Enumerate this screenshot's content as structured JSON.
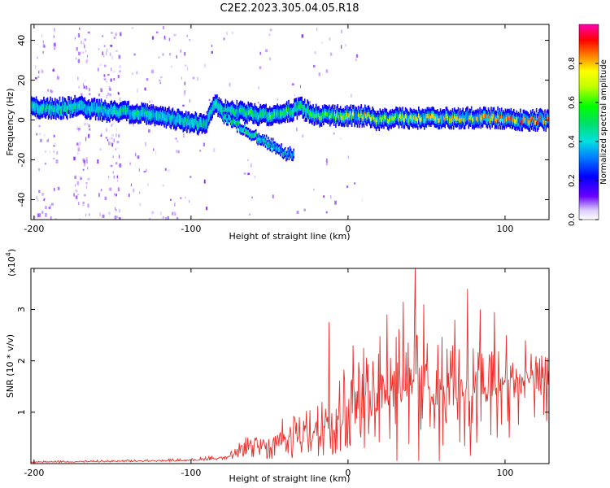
{
  "title": "C2E2.2023.305.04.05.R18",
  "colors": {
    "snr_line": "#e8312a",
    "axis": "#000000"
  },
  "chart_data": [
    {
      "type": "heatmap",
      "title": "C2E2.2023.305.04.05.R18",
      "xlabel": "Height of straight line (km)",
      "ylabel": "Frequency (Hz)",
      "xlim": [
        -202,
        128
      ],
      "ylim": [
        -50,
        48
      ],
      "xticks": [
        -200,
        -100,
        0,
        100
      ],
      "xtick_labels": [
        "-200",
        "-100",
        "0",
        "100"
      ],
      "yticks": [
        -40,
        -20,
        0,
        20,
        40
      ],
      "ytick_labels": [
        "-40",
        "-20",
        "0",
        "20",
        "40"
      ],
      "colorbar": {
        "label": "Normalized spectral amplitude",
        "range": [
          0,
          1
        ],
        "ticks": [
          0.0,
          0.2,
          0.4,
          0.6,
          0.8
        ],
        "tick_labels": [
          "0.0",
          "0.2",
          "0.4",
          "0.6",
          "0.8"
        ]
      },
      "ridge": [
        {
          "x": -200,
          "y": 6,
          "amp": 0.45
        },
        {
          "x": -190,
          "y": 6,
          "amp": 0.45
        },
        {
          "x": -180,
          "y": 6,
          "amp": 0.45
        },
        {
          "x": -170,
          "y": 7,
          "amp": 0.4
        },
        {
          "x": -160,
          "y": 5,
          "amp": 0.4
        },
        {
          "x": -150,
          "y": 4,
          "amp": 0.45
        },
        {
          "x": -140,
          "y": 4,
          "amp": 0.45
        },
        {
          "x": -130,
          "y": 3,
          "amp": 0.45
        },
        {
          "x": -120,
          "y": 2,
          "amp": 0.45
        },
        {
          "x": -110,
          "y": 0,
          "amp": 0.4
        },
        {
          "x": -100,
          "y": -1,
          "amp": 0.45
        },
        {
          "x": -92,
          "y": -3,
          "amp": 0.4
        },
        {
          "x": -85,
          "y": 8,
          "amp": 0.5
        },
        {
          "x": -80,
          "y": 5,
          "amp": 0.55
        },
        {
          "x": -70,
          "y": 4,
          "amp": 0.5
        },
        {
          "x": -60,
          "y": 3,
          "amp": 0.55
        },
        {
          "x": -50,
          "y": 2,
          "amp": 0.55
        },
        {
          "x": -40,
          "y": 4,
          "amp": 0.55
        },
        {
          "x": -30,
          "y": 6,
          "amp": 0.5
        },
        {
          "x": -20,
          "y": 2,
          "amp": 0.6
        },
        {
          "x": -10,
          "y": 2,
          "amp": 0.65
        },
        {
          "x": 0,
          "y": 2,
          "amp": 0.7
        },
        {
          "x": 10,
          "y": 2,
          "amp": 0.75
        },
        {
          "x": 20,
          "y": 0,
          "amp": 0.6
        },
        {
          "x": 30,
          "y": 1,
          "amp": 0.65
        },
        {
          "x": 40,
          "y": 1,
          "amp": 0.7
        },
        {
          "x": 50,
          "y": 1,
          "amp": 0.75
        },
        {
          "x": 60,
          "y": 1,
          "amp": 0.75
        },
        {
          "x": 70,
          "y": 1,
          "amp": 0.75
        },
        {
          "x": 80,
          "y": 1,
          "amp": 0.75
        },
        {
          "x": 90,
          "y": 1,
          "amp": 0.8
        },
        {
          "x": 100,
          "y": 1,
          "amp": 0.8
        },
        {
          "x": 110,
          "y": 0,
          "amp": 0.85
        },
        {
          "x": 120,
          "y": 0,
          "amp": 0.85
        },
        {
          "x": 128,
          "y": 0,
          "amp": 0.85
        }
      ],
      "branch": [
        {
          "x": -80,
          "y": 2,
          "amp": 0.5
        },
        {
          "x": -70,
          "y": -3,
          "amp": 0.45
        },
        {
          "x": -60,
          "y": -8,
          "amp": 0.45
        },
        {
          "x": -50,
          "y": -12,
          "amp": 0.4
        },
        {
          "x": -40,
          "y": -17,
          "amp": 0.35
        }
      ]
    },
    {
      "type": "line",
      "xlabel": "Height of straight line (km)",
      "ylabel": "SNR (10 * v/v)",
      "y_scale_label": "(x10",
      "y_scale_exp": "4",
      "y_scale_close": ")",
      "xlim": [
        -202,
        128
      ],
      "ylim": [
        0,
        3.8
      ],
      "xticks": [
        -200,
        -100,
        0,
        100
      ],
      "xtick_labels": [
        "-200",
        "-100",
        "0",
        "100"
      ],
      "yticks": [
        1,
        2,
        3
      ],
      "ytick_labels": [
        "1",
        "2",
        "3"
      ],
      "envelope": [
        {
          "x": -202,
          "base": 0.02,
          "peak": 0.05
        },
        {
          "x": -150,
          "base": 0.03,
          "peak": 0.07
        },
        {
          "x": -100,
          "base": 0.05,
          "peak": 0.1
        },
        {
          "x": -75,
          "base": 0.08,
          "peak": 0.22
        },
        {
          "x": -60,
          "base": 0.2,
          "peak": 0.7
        },
        {
          "x": -40,
          "base": 0.3,
          "peak": 0.9
        },
        {
          "x": -20,
          "base": 0.4,
          "peak": 1.1
        },
        {
          "x": -10,
          "base": 0.5,
          "peak": 1.6
        },
        {
          "x": 0,
          "base": 0.7,
          "peak": 2.0
        },
        {
          "x": 20,
          "base": 1.0,
          "peak": 2.6
        },
        {
          "x": 40,
          "base": 1.2,
          "peak": 3.0
        },
        {
          "x": 60,
          "base": 1.1,
          "peak": 2.6
        },
        {
          "x": 80,
          "base": 1.1,
          "peak": 2.3
        },
        {
          "x": 100,
          "base": 1.2,
          "peak": 2.2
        },
        {
          "x": 128,
          "base": 1.3,
          "peak": 2.1
        }
      ],
      "spikes": [
        {
          "x": -12,
          "y": 2.75
        },
        {
          "x": 3,
          "y": 2.3
        },
        {
          "x": 25,
          "y": 2.9
        },
        {
          "x": 35,
          "y": 3.15
        },
        {
          "x": 43,
          "y": 3.8
        },
        {
          "x": 48,
          "y": 3.1
        },
        {
          "x": 58,
          "y": 3.05
        },
        {
          "x": 68,
          "y": 2.8
        },
        {
          "x": 76,
          "y": 3.4
        },
        {
          "x": 84,
          "y": 3.0
        },
        {
          "x": 93,
          "y": 2.95
        },
        {
          "x": 101,
          "y": 2.5
        },
        {
          "x": 113,
          "y": 2.4
        },
        {
          "x": 122,
          "y": 2.05
        }
      ],
      "dips": [
        {
          "x": 31,
          "y": 0.05
        },
        {
          "x": 45,
          "y": 0.05
        },
        {
          "x": 58,
          "y": 0.05
        },
        {
          "x": 78,
          "y": 0.15
        },
        {
          "x": 95,
          "y": 0.5
        }
      ]
    }
  ]
}
